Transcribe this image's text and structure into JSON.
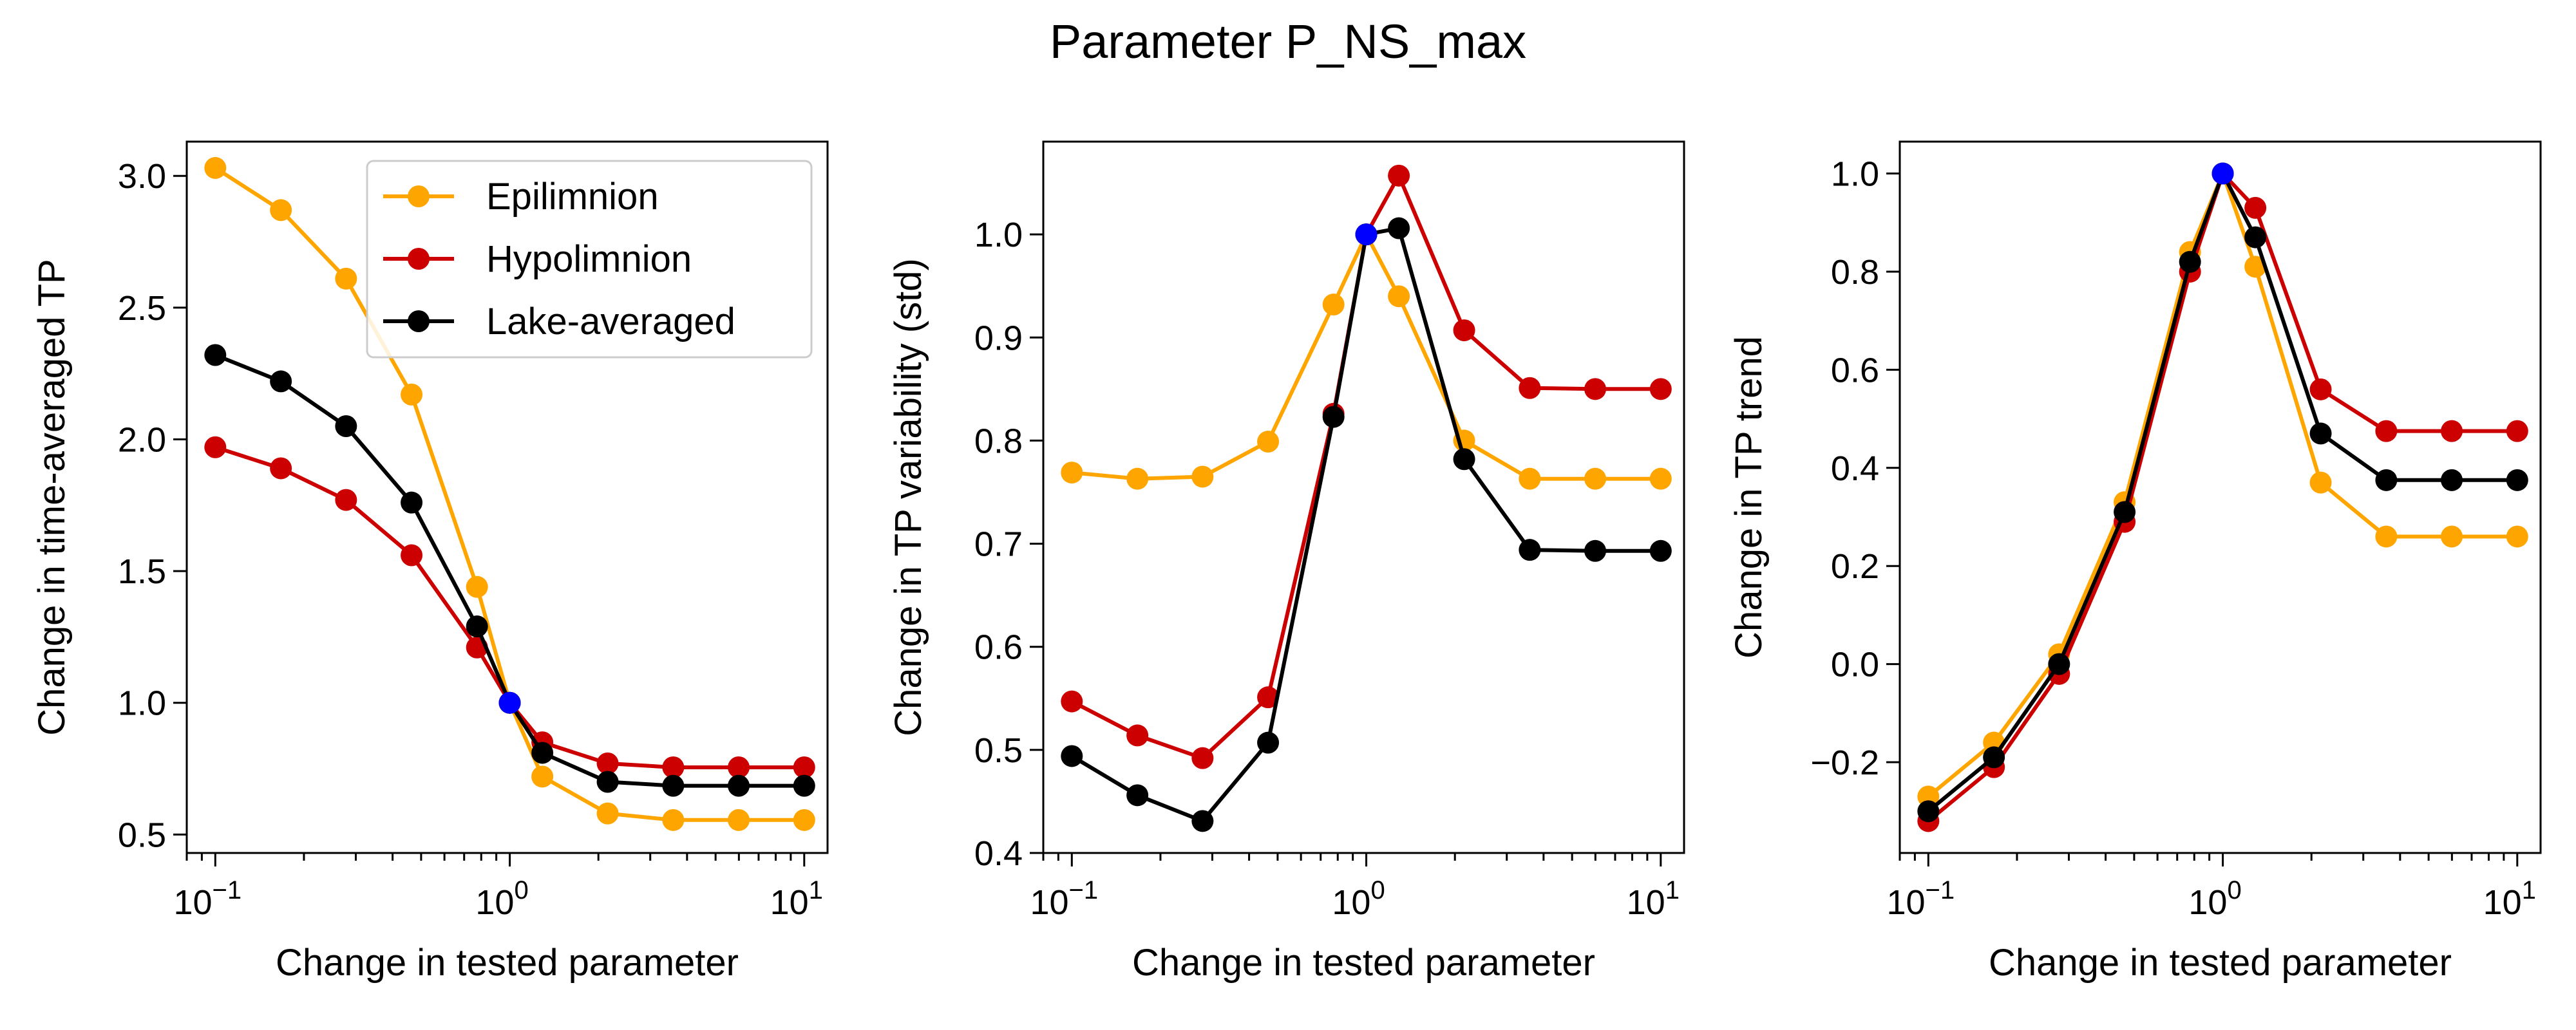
{
  "figure": {
    "title": "Parameter P_NS_max"
  },
  "colors": {
    "Epilimnion": "#FFA500",
    "Hypolimnion": "#CC0000",
    "Lake-averaged": "#000000",
    "reference_point": "#0000FF"
  },
  "legend": {
    "placement": "upper right of first panel",
    "entries": [
      "Epilimnion",
      "Hypolimnion",
      "Lake-averaged"
    ]
  },
  "chart_data": [
    {
      "type": "line",
      "xlabel": "Change in tested parameter",
      "ylabel": "Change in time-averaged TP",
      "xscale": "log",
      "xlim": [
        0.08,
        12
      ],
      "ylim": [
        0.43,
        3.13
      ],
      "xticks": [
        0.1,
        1,
        10
      ],
      "xtick_labels": [
        [
          "10",
          "−1"
        ],
        [
          "10",
          "0"
        ],
        [
          "10",
          "1"
        ]
      ],
      "yticks": [
        0.5,
        1.0,
        1.5,
        2.0,
        2.5,
        3.0
      ],
      "ytick_labels": [
        "0.5",
        "1.0",
        "1.5",
        "2.0",
        "2.5",
        "3.0"
      ],
      "x": [
        0.1,
        0.167,
        0.278,
        0.464,
        0.774,
        1.0,
        1.29,
        2.15,
        3.59,
        5.99,
        10.0
      ],
      "reference_point": {
        "x": 1.0,
        "y": 1.0
      },
      "legend_visible": true,
      "series": [
        {
          "name": "Epilimnion",
          "values": [
            3.03,
            2.87,
            2.61,
            2.17,
            1.44,
            1.0,
            0.72,
            0.58,
            0.555,
            0.555,
            0.555
          ]
        },
        {
          "name": "Hypolimnion",
          "values": [
            1.97,
            1.89,
            1.77,
            1.56,
            1.21,
            1.0,
            0.85,
            0.77,
            0.755,
            0.755,
            0.755
          ]
        },
        {
          "name": "Lake-averaged",
          "values": [
            2.32,
            2.22,
            2.05,
            1.76,
            1.29,
            1.0,
            0.81,
            0.7,
            0.685,
            0.685,
            0.685
          ]
        }
      ]
    },
    {
      "type": "line",
      "xlabel": "Change in tested parameter",
      "ylabel": "Change in TP variability (std)",
      "xscale": "log",
      "xlim": [
        0.08,
        12
      ],
      "ylim": [
        0.4,
        1.09
      ],
      "xticks": [
        0.1,
        1,
        10
      ],
      "xtick_labels": [
        [
          "10",
          "−1"
        ],
        [
          "10",
          "0"
        ],
        [
          "10",
          "1"
        ]
      ],
      "yticks": [
        0.4,
        0.5,
        0.6,
        0.7,
        0.8,
        0.9,
        1.0
      ],
      "ytick_labels": [
        "0.4",
        "0.5",
        "0.6",
        "0.7",
        "0.8",
        "0.9",
        "1.0"
      ],
      "x": [
        0.1,
        0.167,
        0.278,
        0.464,
        0.774,
        1.0,
        1.29,
        2.15,
        3.59,
        5.99,
        10.0
      ],
      "reference_point": {
        "x": 1.0,
        "y": 1.0
      },
      "legend_visible": false,
      "series": [
        {
          "name": "Epilimnion",
          "values": [
            0.769,
            0.763,
            0.765,
            0.799,
            0.932,
            1.0,
            0.94,
            0.8,
            0.763,
            0.763,
            0.763
          ]
        },
        {
          "name": "Hypolimnion",
          "values": [
            0.547,
            0.514,
            0.492,
            0.551,
            0.826,
            1.0,
            1.057,
            0.907,
            0.851,
            0.85,
            0.85
          ]
        },
        {
          "name": "Lake-averaged",
          "values": [
            0.494,
            0.456,
            0.431,
            0.507,
            0.823,
            1.0,
            1.006,
            0.782,
            0.694,
            0.693,
            0.693
          ]
        }
      ]
    },
    {
      "type": "line",
      "xlabel": "Change in tested parameter",
      "ylabel": "Change in TP trend",
      "xscale": "log",
      "xlim": [
        0.08,
        12
      ],
      "ylim": [
        -0.385,
        1.065
      ],
      "xticks": [
        0.1,
        1,
        10
      ],
      "xtick_labels": [
        [
          "10",
          "−1"
        ],
        [
          "10",
          "0"
        ],
        [
          "10",
          "1"
        ]
      ],
      "yticks": [
        -0.2,
        0.0,
        0.2,
        0.4,
        0.6,
        0.8,
        1.0
      ],
      "ytick_labels": [
        "−0.2",
        "0.0",
        "0.2",
        "0.4",
        "0.6",
        "0.8",
        "1.0"
      ],
      "x": [
        0.1,
        0.167,
        0.278,
        0.464,
        0.774,
        1.0,
        1.29,
        2.15,
        3.59,
        5.99,
        10.0
      ],
      "reference_point": {
        "x": 1.0,
        "y": 1.0
      },
      "legend_visible": false,
      "series": [
        {
          "name": "Epilimnion",
          "values": [
            -0.27,
            -0.16,
            0.02,
            0.33,
            0.84,
            1.0,
            0.81,
            0.37,
            0.26,
            0.26,
            0.26
          ]
        },
        {
          "name": "Hypolimnion",
          "values": [
            -0.32,
            -0.21,
            -0.02,
            0.29,
            0.8,
            1.0,
            0.93,
            0.56,
            0.475,
            0.475,
            0.475
          ]
        },
        {
          "name": "Lake-averaged",
          "values": [
            -0.3,
            -0.19,
            0.0,
            0.31,
            0.82,
            1.0,
            0.87,
            0.47,
            0.375,
            0.375,
            0.375
          ]
        }
      ]
    }
  ]
}
